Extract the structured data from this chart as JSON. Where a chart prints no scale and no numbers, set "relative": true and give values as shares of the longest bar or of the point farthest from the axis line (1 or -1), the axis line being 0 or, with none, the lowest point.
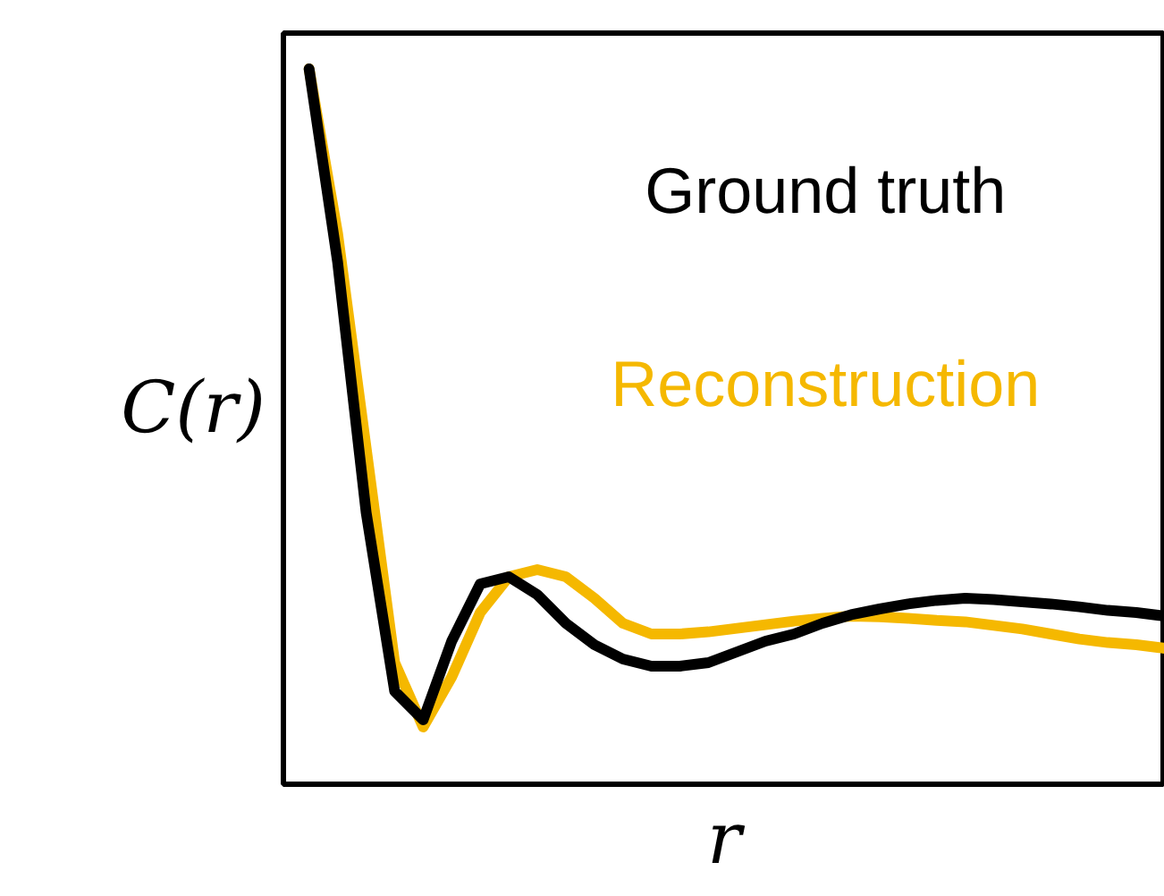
{
  "chart_data": {
    "type": "line",
    "relative": true,
    "ylabel": "C(r)",
    "xlabel": "r",
    "categories": [
      null,
      null,
      null,
      null,
      null,
      null,
      null,
      null,
      null,
      null,
      null,
      null,
      null,
      null,
      null,
      null,
      null,
      null,
      null,
      null,
      null,
      null,
      null,
      null,
      null,
      null,
      null,
      null,
      null,
      null,
      null
    ],
    "series": [
      {
        "name": "Ground truth",
        "color": "#000000",
        "values": [
          1.0,
          0.73,
          0.38,
          0.13,
          0.09,
          0.2,
          0.28,
          0.29,
          0.265,
          0.225,
          0.195,
          0.175,
          0.165,
          0.165,
          0.17,
          0.185,
          0.2,
          0.21,
          0.225,
          0.237,
          0.245,
          0.252,
          0.257,
          0.26,
          0.258,
          0.255,
          0.252,
          0.248,
          0.243,
          0.24,
          0.235
        ]
      },
      {
        "name": "Reconstruction",
        "color": "#f5b800",
        "values": [
          1.0,
          0.77,
          0.47,
          0.17,
          0.08,
          0.15,
          0.24,
          0.29,
          0.3,
          0.29,
          0.26,
          0.225,
          0.21,
          0.21,
          0.213,
          0.218,
          0.223,
          0.228,
          0.232,
          0.235,
          0.234,
          0.232,
          0.229,
          0.227,
          0.222,
          0.217,
          0.21,
          0.203,
          0.198,
          0.195,
          0.19
        ]
      }
    ],
    "line_style": "solid"
  }
}
